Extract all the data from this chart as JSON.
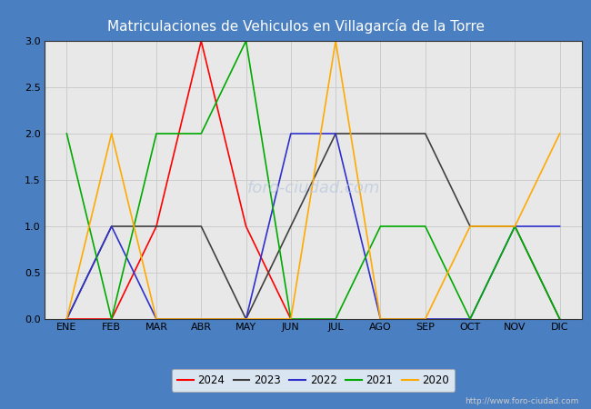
{
  "title": "Matriculaciones de Vehiculos en Villagarcía de la Torre",
  "title_bg": "#4a7fc1",
  "title_color": "white",
  "months": [
    "ENE",
    "FEB",
    "MAR",
    "ABR",
    "MAY",
    "JUN",
    "JUL",
    "AGO",
    "SEP",
    "OCT",
    "NOV",
    "DIC"
  ],
  "series": {
    "2024": {
      "color": "#ff0000",
      "data": [
        0,
        0,
        1,
        3,
        1,
        0,
        null,
        null,
        null,
        null,
        null,
        null
      ]
    },
    "2023": {
      "color": "#404040",
      "data": [
        0,
        1,
        1,
        1,
        0,
        1,
        2,
        2,
        2,
        1,
        1,
        0
      ]
    },
    "2022": {
      "color": "#3030cc",
      "data": [
        0,
        1,
        0,
        0,
        0,
        2,
        2,
        0,
        0,
        0,
        1,
        1
      ]
    },
    "2021": {
      "color": "#00aa00",
      "data": [
        2,
        0,
        2,
        2,
        3,
        0,
        0,
        1,
        1,
        0,
        1,
        0
      ]
    },
    "2020": {
      "color": "#ffaa00",
      "data": [
        0,
        2,
        0,
        0,
        0,
        0,
        3,
        0,
        0,
        1,
        1,
        2
      ]
    }
  },
  "ylim": [
    0,
    3.0
  ],
  "yticks": [
    0.0,
    0.5,
    1.0,
    1.5,
    2.0,
    2.5,
    3.0
  ],
  "grid_color": "#cccccc",
  "plot_bg": "#e8e8e8",
  "outer_bg": "#4a7fc1",
  "url": "http://www.foro-ciudad.com",
  "legend_order": [
    "2024",
    "2023",
    "2022",
    "2021",
    "2020"
  ],
  "linewidth": 1.2,
  "title_fontsize": 11,
  "tick_fontsize": 8
}
